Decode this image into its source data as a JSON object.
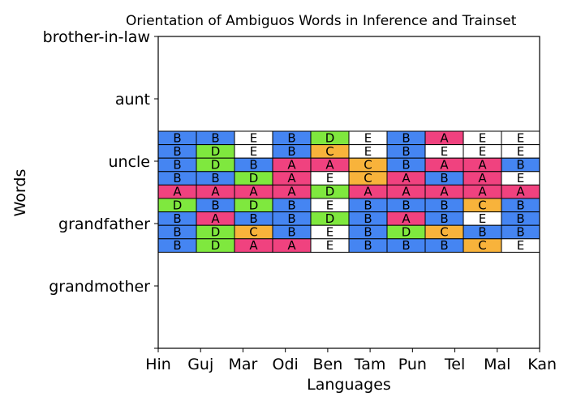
{
  "chart_data": {
    "type": "heatmap",
    "title": "Orientation of Ambiguos Words in Inference and Trainset",
    "xlabel": "Languages",
    "ylabel": "Words",
    "x_categories": [
      "Hin",
      "Guj",
      "Mar",
      "Odi",
      "Ben",
      "Tam",
      "Pun",
      "Tel",
      "Mal",
      "Kan"
    ],
    "y_tick_labels": [
      "brother-in-law",
      "aunt",
      "uncle",
      "grandfather",
      "grandmother"
    ],
    "grid_rows_top_to_bottom": [
      [
        "B",
        "B",
        "E",
        "B",
        "D",
        "E",
        "B",
        "A",
        "E",
        "E"
      ],
      [
        "B",
        "D",
        "E",
        "B",
        "C",
        "E",
        "B",
        "E",
        "E",
        "E"
      ],
      [
        "B",
        "D",
        "B",
        "A",
        "A",
        "C",
        "B",
        "A",
        "A",
        "B"
      ],
      [
        "B",
        "B",
        "D",
        "A",
        "E",
        "C",
        "A",
        "B",
        "A",
        "E"
      ],
      [
        "A",
        "A",
        "A",
        "A",
        "D",
        "A",
        "A",
        "A",
        "A",
        "A"
      ],
      [
        "D",
        "B",
        "D",
        "B",
        "E",
        "B",
        "B",
        "B",
        "C",
        "B"
      ],
      [
        "B",
        "A",
        "B",
        "B",
        "D",
        "B",
        "A",
        "B",
        "E",
        "B"
      ],
      [
        "B",
        "D",
        "C",
        "B",
        "E",
        "B",
        "D",
        "C",
        "B",
        "B"
      ],
      [
        "B",
        "D",
        "A",
        "A",
        "E",
        "B",
        "B",
        "B",
        "C",
        "E"
      ]
    ],
    "label_colors": {
      "A": "#f0427f",
      "B": "#4585f2",
      "C": "#f8b33b",
      "D": "#7fe83e",
      "E": "#ffffff"
    },
    "grid": false,
    "legend": "none"
  }
}
